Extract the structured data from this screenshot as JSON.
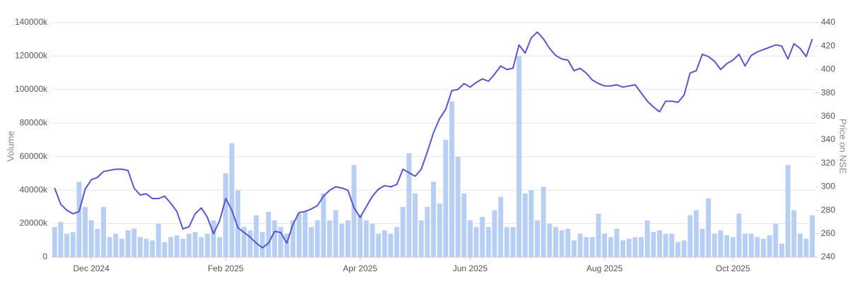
{
  "chart_data": {
    "type": "bar",
    "ylabel": "Volume",
    "y2label": "Price on NSE",
    "categories": [
      null,
      null,
      null,
      null,
      null,
      null,
      "Dec 2024",
      null,
      null,
      null,
      null,
      null,
      null,
      null,
      null,
      null,
      null,
      null,
      null,
      null,
      null,
      null,
      null,
      null,
      null,
      null,
      null,
      null,
      "Feb 2025",
      null,
      null,
      null,
      null,
      null,
      null,
      null,
      null,
      null,
      null,
      null,
      null,
      null,
      null,
      null,
      null,
      null,
      null,
      null,
      null,
      null,
      "Apr 2025",
      null,
      null,
      null,
      null,
      null,
      null,
      null,
      null,
      null,
      null,
      null,
      null,
      null,
      null,
      null,
      null,
      null,
      "Jun 2025",
      null,
      null,
      null,
      null,
      null,
      null,
      null,
      null,
      null,
      null,
      null,
      null,
      null,
      null,
      null,
      null,
      null,
      null,
      null,
      null,
      null,
      "Aug 2025",
      null,
      null,
      null,
      null,
      null,
      null,
      null,
      null,
      null,
      null,
      null,
      null,
      null,
      null,
      null,
      null,
      null,
      null,
      null,
      null,
      "Oct 2025",
      null,
      null,
      null,
      null,
      null,
      null,
      null,
      null,
      null,
      null,
      null,
      null,
      null
    ],
    "series": [
      {
        "type": "bar",
        "color": "#b8cff5",
        "values": [
          18000,
          21000,
          14000,
          15000,
          45000,
          30000,
          22000,
          17000,
          30000,
          12000,
          14000,
          11000,
          16000,
          17000,
          12000,
          11000,
          10000,
          20000,
          9000,
          12000,
          13000,
          11000,
          14000,
          15000,
          12000,
          14000,
          22000,
          12000,
          50000,
          68000,
          40000,
          18000,
          16000,
          25000,
          15000,
          27000,
          22000,
          18000,
          14000,
          22000,
          26000,
          27000,
          18000,
          22000,
          38000,
          22000,
          28000,
          20000,
          22000,
          55000,
          25000,
          22000,
          20000,
          14000,
          16000,
          14000,
          18000,
          30000,
          62000,
          38000,
          22000,
          30000,
          45000,
          32000,
          70000,
          93000,
          60000,
          38000,
          22000,
          18000,
          24000,
          18000,
          28000,
          36000,
          18000,
          18000,
          120000,
          38000,
          40000,
          22000,
          42000,
          20000,
          18000,
          16000,
          17000,
          10000,
          14000,
          12000,
          12000,
          26000,
          14000,
          12000,
          17000,
          10000,
          11000,
          12000,
          12000,
          22000,
          15000,
          16000,
          14000,
          14000,
          9000,
          10000,
          25000,
          28000,
          17000,
          35000,
          14000,
          16000,
          13000,
          12000,
          26000,
          14000,
          14000,
          12000,
          11000,
          13000,
          20000,
          8000,
          55000,
          28000,
          14000,
          11000,
          25000
        ]
      },
      {
        "type": "line",
        "axis": "y2",
        "color": "#5a55d2",
        "values": [
          299,
          285,
          280,
          277,
          279,
          298,
          306,
          308,
          313,
          314,
          315,
          315,
          314,
          299,
          293,
          294,
          290,
          290,
          292,
          286,
          279,
          264,
          266,
          277,
          282,
          274,
          260,
          271,
          290,
          280,
          265,
          261,
          257,
          252,
          248,
          252,
          262,
          261,
          252,
          268,
          278,
          279,
          281,
          284,
          292,
          297,
          300,
          299,
          297,
          282,
          274,
          283,
          292,
          298,
          301,
          300,
          302,
          315,
          312,
          309,
          315,
          330,
          346,
          358,
          366,
          382,
          383,
          388,
          385,
          389,
          392,
          390,
          396,
          403,
          400,
          401,
          421,
          414,
          427,
          432,
          426,
          418,
          412,
          409,
          408,
          399,
          401,
          397,
          391,
          388,
          386,
          386,
          387,
          385,
          386,
          387,
          380,
          373,
          368,
          364,
          373,
          373,
          372,
          378,
          397,
          399,
          413,
          411,
          407,
          400,
          405,
          408,
          413,
          403,
          412,
          415,
          417,
          419,
          421,
          420,
          409,
          422,
          418,
          411,
          426
        ]
      }
    ],
    "ylim": [
      0,
      140000
    ],
    "yticks": [
      0,
      {
        "value": 20000,
        "label": "20000k"
      },
      {
        "value": 40000,
        "label": "40000k"
      },
      {
        "value": 60000,
        "label": "60000k"
      },
      {
        "value": 80000,
        "label": "80000k"
      },
      {
        "value": 100000,
        "label": "100000k"
      },
      {
        "value": 120000,
        "label": "120000k"
      },
      {
        "value": 140000,
        "label": "140000k"
      }
    ],
    "y2lim": [
      240,
      440
    ],
    "y2ticks": [
      240,
      260,
      280,
      300,
      320,
      340,
      360,
      380,
      400,
      420,
      440
    ],
    "grid": true
  }
}
